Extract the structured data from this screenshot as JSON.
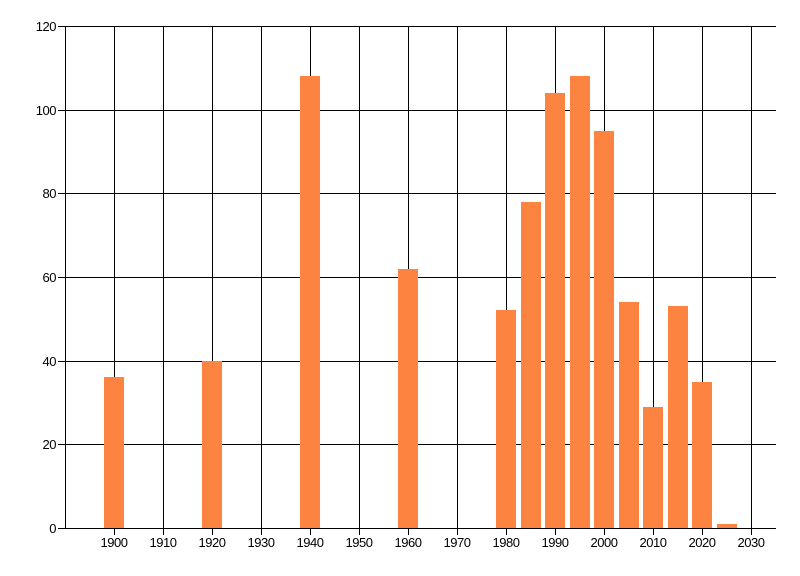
{
  "chart_data": {
    "type": "bar",
    "title": "",
    "xlabel": "",
    "ylabel": "",
    "x": [
      1900,
      1920,
      1940,
      1960,
      1980,
      1985,
      1990,
      1995,
      2000,
      2005,
      2010,
      2015,
      2020,
      2025
    ],
    "values": [
      36,
      40,
      108,
      62,
      52,
      78,
      104,
      108,
      95,
      54,
      29,
      53,
      35,
      1
    ],
    "xlim": [
      1890,
      2035
    ],
    "ylim": [
      0,
      120
    ],
    "x_ticks": [
      1900,
      1910,
      1920,
      1930,
      1940,
      1950,
      1960,
      1970,
      1980,
      1990,
      2000,
      2010,
      2020,
      2030
    ],
    "y_ticks": [
      0,
      20,
      40,
      60,
      80,
      100,
      120
    ],
    "grid": true,
    "legend": "none",
    "bar_width_years": 4,
    "bar_color": "#fc8340",
    "grid_color": "#000000",
    "axis_color": "#000000",
    "text_color": "#000000",
    "background_color": "#ffffff"
  }
}
